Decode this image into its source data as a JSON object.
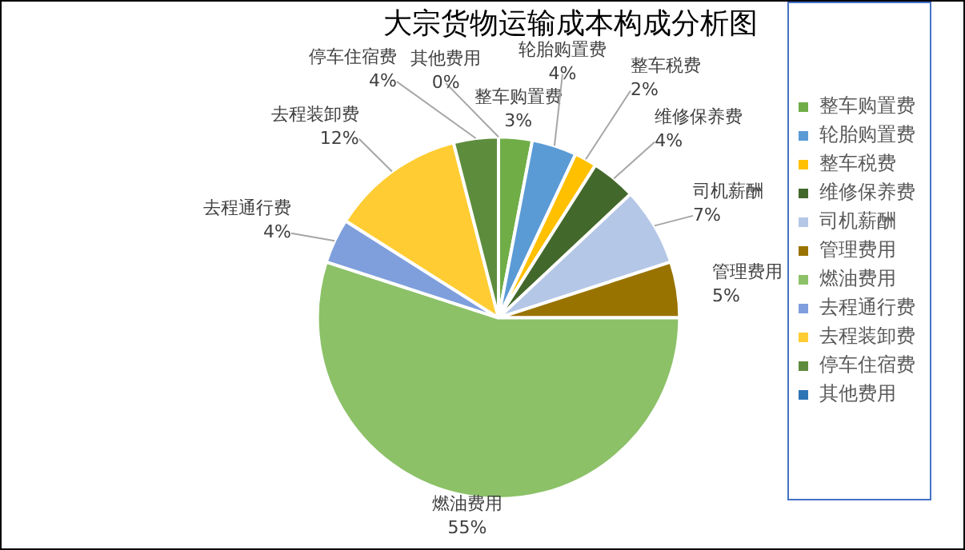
{
  "chart_data": {
    "type": "pie",
    "title": "大宗货物运输成本构成分析图",
    "categories": [
      "整车购置费",
      "轮胎购置费",
      "整车税费",
      "维修保养费",
      "司机薪酬",
      "管理费用",
      "燃油费用",
      "去程通行费",
      "去程装卸费",
      "停车住宿费",
      "其他费用"
    ],
    "values": [
      3,
      4,
      2,
      4,
      7,
      5,
      55,
      4,
      12,
      4,
      0
    ],
    "colors": [
      "#70ad47",
      "#5b9bd5",
      "#ffc000",
      "#43682b",
      "#b4c7e7",
      "#997300",
      "#8cc168",
      "#7f9fdc",
      "#ffcd33",
      "#5e8c3d",
      "#2e75b6"
    ],
    "value_labels": [
      "3%",
      "4%",
      "2%",
      "4%",
      "7%",
      "5%",
      "55%",
      "4%",
      "12%",
      "4%",
      "0%"
    ],
    "legend": "right"
  }
}
